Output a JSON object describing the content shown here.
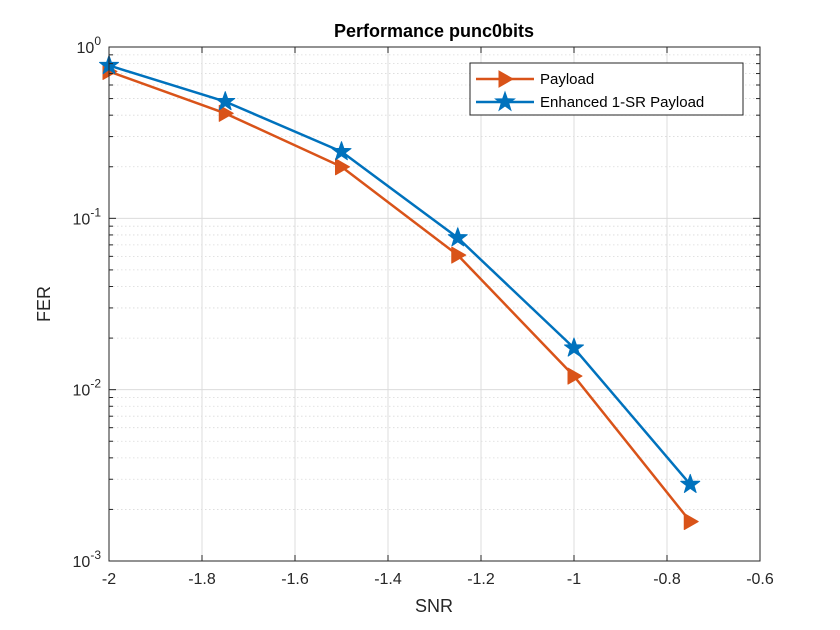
{
  "chart_data": {
    "type": "line",
    "title": "Performance  punc0bits",
    "xlabel": "SNR",
    "ylabel": "FER",
    "xlim": [
      -2,
      -0.6
    ],
    "ylim": [
      0.001,
      1
    ],
    "yscale": "log",
    "grid": true,
    "minor_grid": true,
    "legend_position": "top-right",
    "x_ticks": [
      {
        "value": -2,
        "label": "-2"
      },
      {
        "value": -1.8,
        "label": "-1.8"
      },
      {
        "value": -1.6,
        "label": "-1.6"
      },
      {
        "value": -1.4,
        "label": "-1.4"
      },
      {
        "value": -1.2,
        "label": "-1.2"
      },
      {
        "value": -1,
        "label": "-1"
      },
      {
        "value": -0.8,
        "label": "-0.8"
      },
      {
        "value": -0.6,
        "label": "-0.6"
      }
    ],
    "y_ticks": [
      {
        "value": 1,
        "base": "10",
        "exp": "0"
      },
      {
        "value": 0.1,
        "base": "10",
        "exp": "-1"
      },
      {
        "value": 0.01,
        "base": "10",
        "exp": "-2"
      },
      {
        "value": 0.001,
        "base": "10",
        "exp": "-3"
      }
    ],
    "x": [
      -2,
      -1.75,
      -1.5,
      -1.25,
      -1,
      -0.75
    ],
    "series": [
      {
        "name": "Payload",
        "color": "#D95319",
        "marker": "triangle-right",
        "values": [
          0.72,
          0.41,
          0.2,
          0.061,
          0.012,
          0.0017
        ]
      },
      {
        "name": "Enhanced 1-SR Payload",
        "color": "#0072BD",
        "marker": "star",
        "values": [
          0.78,
          0.48,
          0.245,
          0.077,
          0.0175,
          0.0028
        ]
      }
    ]
  }
}
